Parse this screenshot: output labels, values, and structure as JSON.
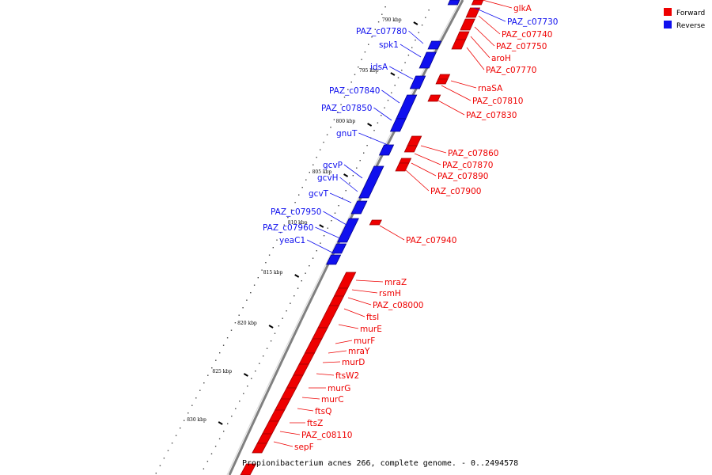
{
  "legend": [
    {
      "label": "Forward",
      "color": "#ee0000"
    },
    {
      "label": "Reverse",
      "color": "#1010ee"
    }
  ],
  "caption": "Propionibacterium acnes 266, complete genome. - 0..2494578",
  "ticks": [
    "790 kbp",
    "795 kbp",
    "800 kbp",
    "805 kbp",
    "810 kbp",
    "815 kbp",
    "820 kbp",
    "825 kbp",
    "830 kbp"
  ],
  "reverse_genes": [
    "PAZ_c07780",
    "spk1",
    "idsA",
    "PAZ_c07840",
    "PAZ_c07850",
    "gnuT",
    "gcvP",
    "gcvH",
    "gcvT",
    "PAZ_c07950",
    "PAZ_c07960",
    "yeaC1",
    "PAZ_c07730"
  ],
  "forward_genes": [
    "glkA",
    "PAZ_c07740",
    "PAZ_c07750",
    "aroH",
    "PAZ_c07770",
    "rnaSA",
    "PAZ_c07810",
    "PAZ_c07830",
    "PAZ_c07860",
    "PAZ_c07870",
    "PAZ_c07890",
    "PAZ_c07900",
    "PAZ_c07940",
    "mraZ",
    "rsmH",
    "PAZ_c08000",
    "ftsI",
    "murE",
    "murF",
    "mraY",
    "murD",
    "ftsW2",
    "murG",
    "murC",
    "ftsQ",
    "ftsZ",
    "PAZ_c08110",
    "sepF"
  ],
  "colors": {
    "forward": "#ee0000",
    "reverse": "#1010ee",
    "backbone": "#808080",
    "label_line_forward": "#ee0000",
    "label_line_reverse": "#1010ee"
  }
}
